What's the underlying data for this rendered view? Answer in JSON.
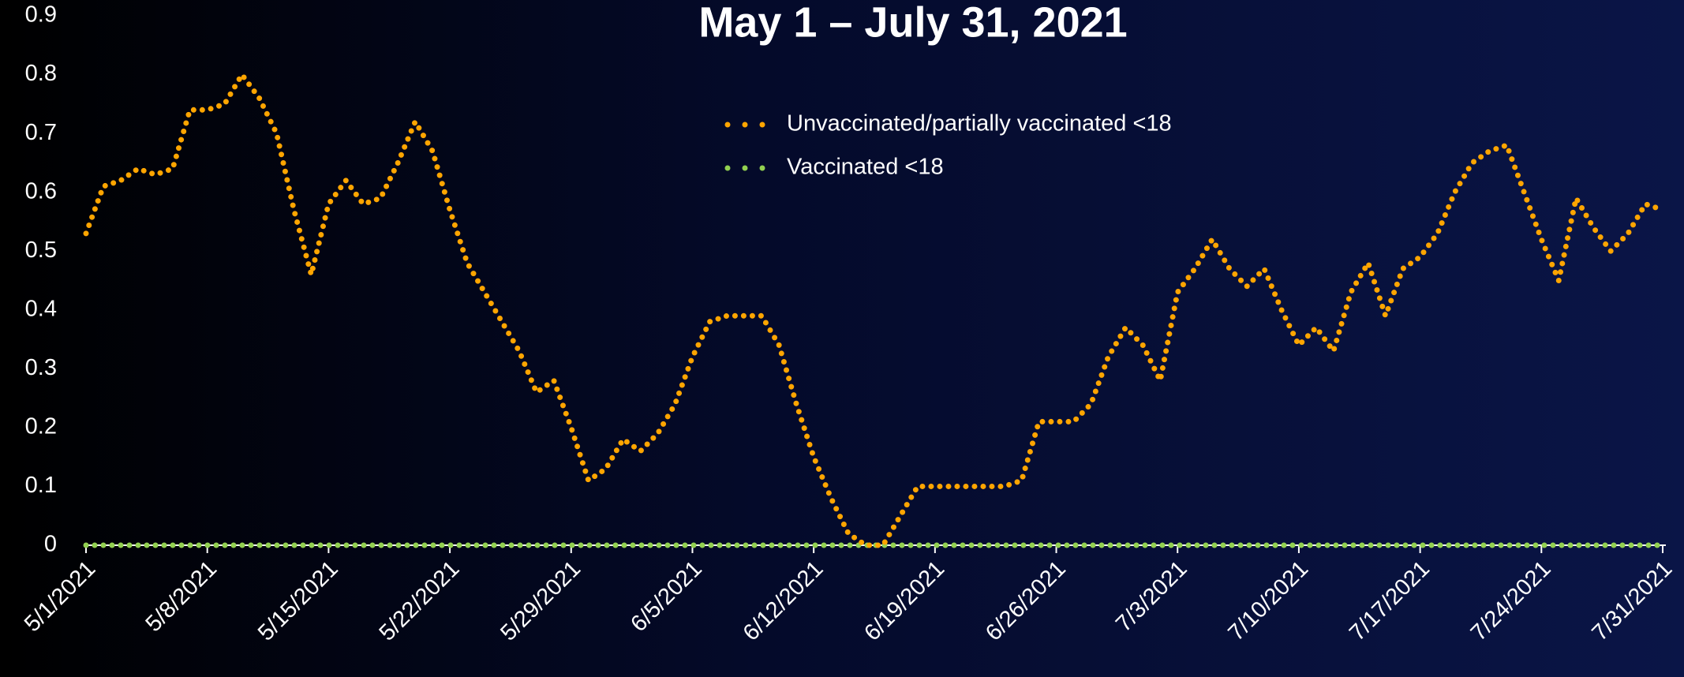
{
  "chart_data": {
    "type": "line",
    "title": "May 1 – July 31, 2021",
    "categories": [
      "5/1/2021",
      null,
      null,
      null,
      null,
      null,
      null,
      "5/8/2021",
      null,
      null,
      null,
      null,
      null,
      null,
      "5/15/2021",
      null,
      null,
      null,
      null,
      null,
      null,
      "5/22/2021",
      null,
      null,
      null,
      null,
      null,
      null,
      "5/29/2021",
      null,
      null,
      null,
      null,
      null,
      null,
      "6/5/2021",
      null,
      null,
      null,
      null,
      null,
      null,
      "6/12/2021",
      null,
      null,
      null,
      null,
      null,
      null,
      "6/19/2021",
      null,
      null,
      null,
      null,
      null,
      null,
      "6/26/2021",
      null,
      null,
      null,
      null,
      null,
      null,
      "7/3/2021",
      null,
      null,
      null,
      null,
      null,
      null,
      "7/10/2021",
      null,
      null,
      null,
      null,
      null,
      null,
      "7/17/2021",
      null,
      null,
      null,
      null,
      null,
      null,
      "7/24/2021",
      null,
      null,
      null,
      null,
      null,
      null,
      "7/31/2021"
    ],
    "series": [
      {
        "name": "Unvaccinated/partially vaccinated <18",
        "color": "#ffa500",
        "values": [
          0.53,
          0.61,
          0.62,
          0.64,
          0.63,
          0.64,
          0.74,
          0.74,
          0.75,
          0.8,
          0.76,
          0.7,
          0.57,
          0.46,
          0.58,
          0.62,
          0.58,
          0.59,
          0.65,
          0.72,
          0.67,
          0.57,
          0.48,
          0.43,
          0.38,
          0.33,
          0.26,
          0.28,
          0.2,
          0.11,
          0.13,
          0.18,
          0.16,
          0.19,
          0.24,
          0.32,
          0.38,
          0.39,
          0.39,
          0.39,
          0.34,
          0.24,
          0.15,
          0.08,
          0.02,
          0,
          0,
          0.05,
          0.1,
          0.1,
          0.1,
          0.1,
          0.1,
          0.1,
          0.11,
          0.21,
          0.21,
          0.21,
          0.24,
          0.32,
          0.37,
          0.34,
          0.28,
          0.43,
          0.47,
          0.52,
          0.47,
          0.44,
          0.47,
          0.4,
          0.34,
          0.37,
          0.33,
          0.43,
          0.48,
          0.39,
          0.47,
          0.49,
          0.53,
          0.6,
          0.65,
          0.67,
          0.68,
          0.6,
          0.52,
          0.45,
          0.59,
          0.54,
          0.5,
          0.53,
          0.58,
          0.57
        ]
      },
      {
        "name": "Vaccinated <18",
        "color": "#92d050",
        "values": [
          0,
          0,
          0,
          0,
          0,
          0,
          0,
          0,
          0,
          0,
          0,
          0,
          0,
          0,
          0,
          0,
          0,
          0,
          0,
          0,
          0,
          0,
          0,
          0,
          0,
          0,
          0,
          0,
          0,
          0,
          0,
          0,
          0,
          0,
          0,
          0,
          0,
          0,
          0,
          0,
          0,
          0,
          0,
          0,
          0,
          0,
          0,
          0,
          0,
          0,
          0,
          0,
          0,
          0,
          0,
          0,
          0,
          0,
          0,
          0,
          0,
          0,
          0,
          0,
          0,
          0,
          0,
          0,
          0,
          0,
          0,
          0,
          0,
          0,
          0,
          0,
          0,
          0,
          0,
          0,
          0,
          0,
          0,
          0,
          0,
          0,
          0,
          0,
          0,
          0,
          0,
          0
        ]
      }
    ],
    "ylim": [
      0,
      0.9
    ],
    "yticks": [
      0,
      0.1,
      0.2,
      0.3,
      0.4,
      0.5,
      0.6,
      0.7,
      0.8,
      0.9
    ],
    "grid": false
  }
}
